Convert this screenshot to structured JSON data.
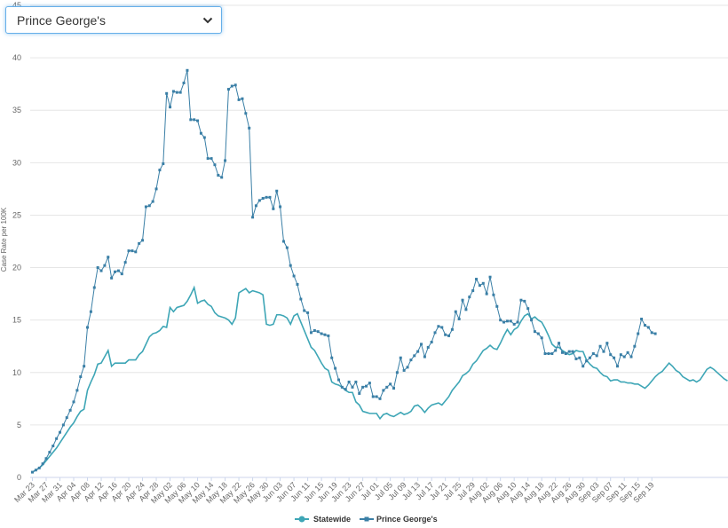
{
  "selector": {
    "selected": "Prince George's"
  },
  "chart_data": {
    "type": "line",
    "title": "",
    "xlabel": "",
    "ylabel": "Case Rate per 100K",
    "ylim": [
      0,
      45
    ],
    "yticks": [
      0,
      5,
      10,
      15,
      20,
      25,
      30,
      35,
      40,
      45
    ],
    "grid": "horizontal",
    "legend_position": "bottom-center",
    "start_date": "2020-03-23",
    "x_tick_labels": [
      "Mar 23",
      "Mar 27",
      "Mar 31",
      "Apr 04",
      "Apr 08",
      "Apr 12",
      "Apr 16",
      "Apr 20",
      "Apr 24",
      "Apr 28",
      "May 02",
      "May 06",
      "May 10",
      "May 14",
      "May 18",
      "May 22",
      "May 26",
      "May 30",
      "Jun 03",
      "Jun 07",
      "Jun 11",
      "Jun 15",
      "Jun 19",
      "Jun 23",
      "Jun 27",
      "Jul 01",
      "Jul 05",
      "Jul 09",
      "Jul 13",
      "Jul 17",
      "Jul 21",
      "Jul 25",
      "Jul 29",
      "Aug 02",
      "Aug 06",
      "Aug 10",
      "Aug 14",
      "Aug 18",
      "Aug 22",
      "Aug 26",
      "Aug 30",
      "Sep 03",
      "Sep 07",
      "Sep 11",
      "Sep 15",
      "Sep 19"
    ],
    "series": [
      {
        "name": "Statewide",
        "color": "#3ea6b6",
        "marker": "circle",
        "values": [
          0.5,
          0.7,
          0.9,
          1.2,
          1.6,
          2.0,
          2.4,
          2.8,
          3.3,
          3.8,
          4.3,
          4.8,
          5.2,
          5.8,
          6.3,
          6.5,
          8.3,
          9.1,
          9.8,
          10.8,
          10.9,
          11.5,
          12.1,
          10.6,
          10.9,
          10.9,
          10.9,
          10.9,
          11.2,
          11.2,
          11.2,
          11.7,
          12.0,
          12.7,
          13.4,
          13.7,
          13.8,
          14.0,
          14.4,
          14.3,
          16.2,
          15.8,
          16.2,
          16.3,
          16.4,
          16.8,
          17.4,
          18.1,
          16.6,
          16.8,
          16.9,
          16.5,
          16.3,
          15.7,
          15.4,
          15.3,
          15.2,
          15.0,
          14.6,
          15.2,
          17.6,
          17.8,
          18.0,
          17.6,
          17.8,
          17.7,
          17.6,
          17.4,
          14.6,
          14.5,
          14.6,
          15.5,
          15.5,
          15.4,
          15.2,
          14.6,
          15.4,
          15.6,
          14.8,
          14.0,
          13.2,
          12.4,
          12.1,
          11.5,
          10.9,
          10.4,
          10.2,
          9.1,
          8.9,
          8.8,
          8.6,
          8.3,
          8.1,
          8.1,
          7.2,
          6.9,
          6.3,
          6.2,
          6.1,
          6.1,
          6.1,
          5.6,
          6.0,
          6.1,
          5.9,
          5.8,
          6.0,
          6.2,
          6.0,
          6.1,
          6.3,
          6.8,
          6.9,
          6.6,
          6.2,
          6.6,
          6.9,
          7.0,
          7.1,
          6.9,
          7.3,
          7.7,
          8.3,
          8.7,
          9.1,
          9.7,
          9.9,
          10.2,
          10.8,
          11.1,
          11.6,
          12.1,
          12.3,
          12.6,
          12.3,
          12.2,
          12.8,
          13.5,
          14.1,
          13.6,
          14.1,
          14.3,
          14.9,
          15.4,
          15.6,
          15.1,
          15.3,
          15.0,
          14.8,
          14.2,
          13.5,
          12.7,
          12.4,
          12.4,
          12.1,
          11.9,
          11.7,
          11.8,
          12.1,
          12.0,
          12.0,
          11.2,
          10.8,
          10.5,
          10.4,
          10.0,
          9.7,
          9.6,
          9.2,
          9.3,
          9.3,
          9.1,
          9.1,
          9.0,
          9.0,
          8.9,
          8.9,
          8.7,
          8.5,
          8.8,
          9.2,
          9.6,
          9.9,
          10.1,
          10.5,
          10.9,
          10.6,
          10.2,
          10.0,
          9.6,
          9.4,
          9.2,
          9.3,
          9.1,
          9.3,
          9.8,
          10.3,
          10.5,
          10.3,
          10.0,
          9.7,
          9.4,
          9.2
        ]
      },
      {
        "name": "Prince George's",
        "color": "#3a7fa6",
        "marker": "square",
        "values": [
          0.5,
          0.7,
          0.9,
          1.3,
          1.8,
          2.4,
          3.0,
          3.7,
          4.3,
          5.0,
          5.7,
          6.4,
          7.2,
          8.3,
          9.6,
          10.6,
          14.3,
          15.8,
          18.1,
          20.0,
          19.7,
          20.2,
          21.0,
          19.0,
          19.6,
          19.7,
          19.4,
          20.5,
          21.6,
          21.6,
          21.5,
          22.3,
          22.6,
          25.8,
          25.9,
          26.3,
          27.5,
          29.3,
          29.9,
          36.6,
          35.3,
          36.8,
          36.7,
          36.7,
          37.6,
          38.8,
          34.1,
          34.1,
          34.0,
          32.8,
          32.4,
          30.4,
          30.4,
          29.8,
          28.8,
          28.6,
          30.2,
          37.0,
          37.3,
          37.4,
          36.0,
          36.1,
          34.7,
          33.3,
          24.8,
          25.9,
          26.4,
          26.6,
          26.7,
          26.7,
          25.6,
          27.3,
          25.8,
          22.5,
          21.9,
          20.2,
          19.2,
          18.4,
          17.0,
          15.9,
          15.7,
          13.8,
          14.0,
          13.9,
          13.7,
          13.6,
          13.5,
          11.4,
          10.4,
          9.3,
          8.6,
          8.4,
          9.1,
          8.6,
          9.1,
          8.0,
          8.6,
          8.7,
          9.0,
          7.7,
          7.7,
          7.5,
          8.3,
          8.6,
          8.9,
          8.5,
          10.0,
          11.4,
          10.2,
          10.5,
          11.2,
          11.6,
          12.0,
          12.7,
          11.5,
          12.4,
          12.9,
          13.8,
          14.4,
          14.3,
          13.6,
          13.5,
          14.1,
          15.8,
          15.1,
          16.9,
          16.0,
          17.2,
          17.8,
          18.9,
          18.3,
          18.5,
          17.5,
          19.1,
          17.4,
          16.3,
          15.0,
          14.8,
          14.9,
          14.9,
          14.6,
          14.8,
          16.9,
          16.8,
          16.1,
          15.0,
          13.9,
          13.7,
          13.3,
          11.8,
          11.8,
          11.8,
          12.1,
          12.8,
          11.9,
          11.8,
          12.0,
          12.0,
          11.3,
          11.4,
          10.6,
          11.1,
          11.4,
          11.8,
          11.6,
          12.5,
          12.0,
          12.8,
          11.7,
          11.4,
          10.6,
          11.7,
          11.5,
          11.9,
          11.5,
          12.5,
          13.7,
          15.1,
          14.5,
          14.3,
          13.8,
          13.7
        ]
      }
    ]
  }
}
